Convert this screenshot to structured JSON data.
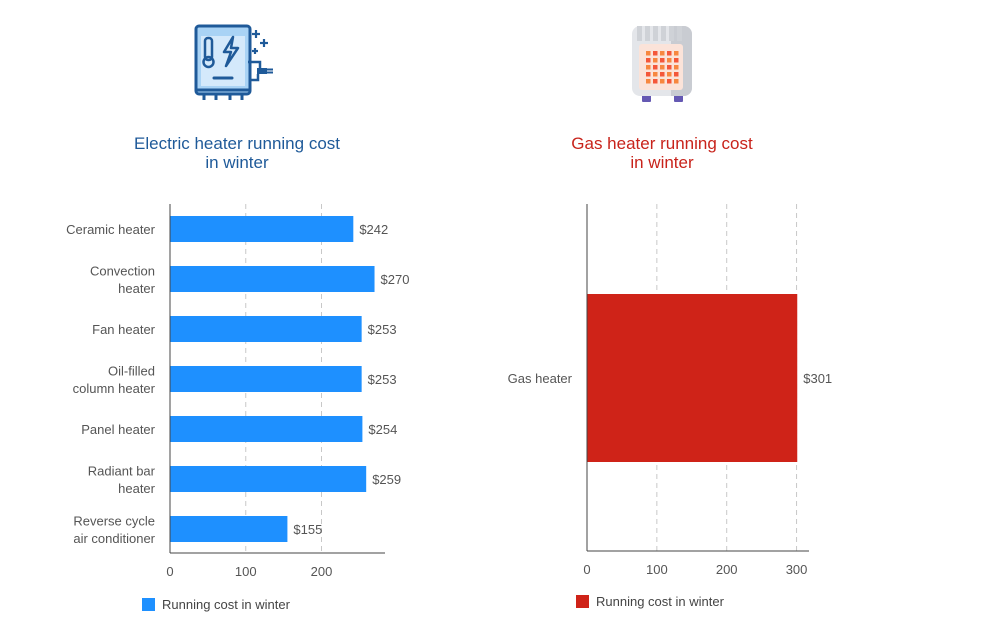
{
  "panels": {
    "electric": {
      "title_line1": "Electric heater running cost",
      "title_line2": "in winter",
      "title_color": "#1f5a99",
      "icon": "electric-boiler-icon",
      "legend_label": "Running cost in winter"
    },
    "gas": {
      "title_line1": "Gas heater running cost",
      "title_line2": "in winter",
      "title_color": "#c8231b",
      "icon": "gas-heater-icon",
      "legend_label": "Running cost in winter"
    }
  },
  "chart_data": [
    {
      "type": "bar",
      "orientation": "horizontal",
      "title": "Electric heater running cost in winter",
      "categories": [
        [
          "Ceramic heater"
        ],
        [
          "Convection",
          "heater"
        ],
        [
          "Fan heater"
        ],
        [
          "Oil-filled",
          "column heater"
        ],
        [
          "Panel heater"
        ],
        [
          "Radiant bar",
          "heater"
        ],
        [
          "Reverse cycle",
          "air conditioner"
        ]
      ],
      "series": [
        {
          "name": "Running cost in winter",
          "color": "#1e90ff",
          "values": [
            242,
            270,
            253,
            253,
            254,
            259,
            155
          ],
          "labels": [
            "$242",
            "$270",
            "$253",
            "$253",
            "$254",
            "$259",
            "$155"
          ]
        }
      ],
      "xlim": [
        0,
        285
      ],
      "xticks": [
        0,
        100,
        200
      ],
      "grid": "vertical dashed",
      "legend_position": "bottom-left"
    },
    {
      "type": "bar",
      "orientation": "horizontal",
      "title": "Gas heater running cost in winter",
      "categories": [
        [
          "Gas heater"
        ]
      ],
      "series": [
        {
          "name": "Running cost in winter",
          "color": "#cf2318",
          "values": [
            301
          ],
          "labels": [
            "$301"
          ]
        }
      ],
      "xlim": [
        0,
        315
      ],
      "xticks": [
        0,
        100,
        200,
        300
      ],
      "grid": "vertical dashed",
      "legend_position": "bottom-left"
    }
  ]
}
